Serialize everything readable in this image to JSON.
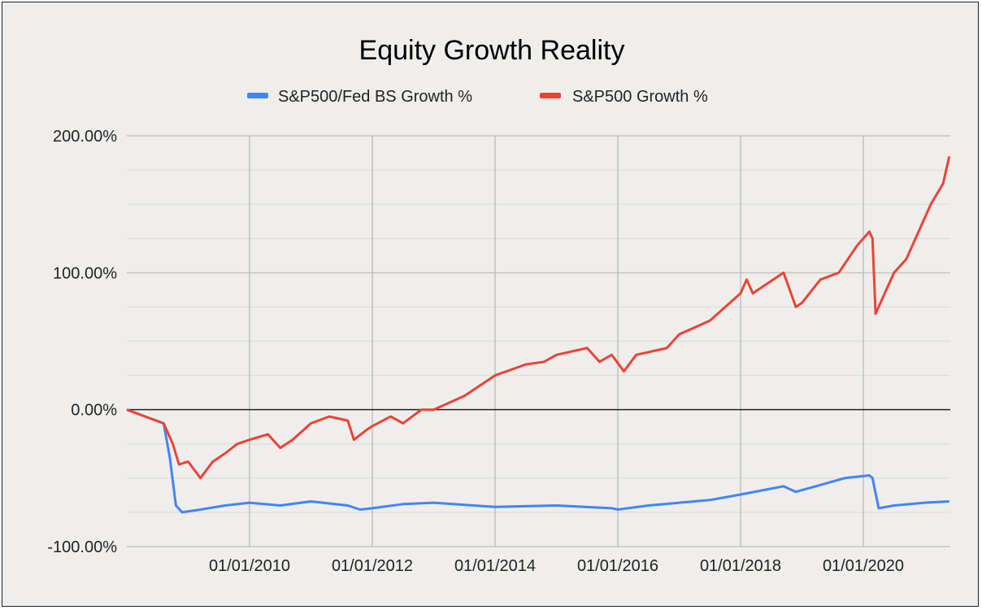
{
  "chart_data": {
    "type": "line",
    "title": "Equity Growth Reality",
    "xlabel": "",
    "ylabel": "",
    "legend_position": "top",
    "xlim": [
      2008.0,
      2021.4
    ],
    "ylim": [
      -100,
      200
    ],
    "y_ticks": [
      -100,
      0,
      100,
      200
    ],
    "y_tick_labels": [
      "-100.00%",
      "0.00%",
      "100.00%",
      "200.00%"
    ],
    "x_ticks": [
      2010,
      2012,
      2014,
      2016,
      2018,
      2020
    ],
    "x_tick_labels": [
      "01/01/2010",
      "01/01/2012",
      "01/01/2014",
      "01/01/2016",
      "01/01/2018",
      "01/01/2020"
    ],
    "grid": true,
    "series": [
      {
        "name": "S&P500/Fed BS Growth %",
        "color": "#4285f4",
        "x": [
          2008.0,
          2008.3,
          2008.6,
          2008.7,
          2008.8,
          2008.9,
          2009.2,
          2009.6,
          2010.0,
          2010.5,
          2011.0,
          2011.6,
          2011.8,
          2012.0,
          2012.5,
          2013.0,
          2014.0,
          2015.0,
          2015.9,
          2016.0,
          2016.5,
          2017.0,
          2017.5,
          2018.0,
          2018.7,
          2018.9,
          2019.3,
          2019.7,
          2020.1,
          2020.15,
          2020.25,
          2020.5,
          2021.0,
          2021.4
        ],
        "y": [
          0,
          -5,
          -10,
          -35,
          -70,
          -75,
          -73,
          -70,
          -68,
          -70,
          -67,
          -70,
          -73,
          -72,
          -69,
          -68,
          -71,
          -70,
          -72,
          -73,
          -70,
          -68,
          -66,
          -62,
          -56,
          -60,
          -55,
          -50,
          -48,
          -50,
          -72,
          -70,
          -68,
          -67
        ]
      },
      {
        "name": "S&P500 Growth %",
        "color": "#ea4335",
        "x": [
          2008.0,
          2008.3,
          2008.6,
          2008.75,
          2008.85,
          2009.0,
          2009.2,
          2009.4,
          2009.6,
          2009.8,
          2010.0,
          2010.3,
          2010.5,
          2010.7,
          2011.0,
          2011.3,
          2011.6,
          2011.7,
          2011.9,
          2012.0,
          2012.3,
          2012.5,
          2012.8,
          2013.0,
          2013.5,
          2014.0,
          2014.5,
          2014.8,
          2015.0,
          2015.5,
          2015.7,
          2015.9,
          2016.1,
          2016.3,
          2016.8,
          2017.0,
          2017.5,
          2018.0,
          2018.1,
          2018.2,
          2018.7,
          2018.9,
          2019.0,
          2019.3,
          2019.6,
          2019.9,
          2020.1,
          2020.15,
          2020.2,
          2020.3,
          2020.5,
          2020.7,
          2020.9,
          2021.1,
          2021.3,
          2021.4
        ],
        "y": [
          0,
          -5,
          -10,
          -25,
          -40,
          -38,
          -50,
          -38,
          -32,
          -25,
          -22,
          -18,
          -28,
          -22,
          -10,
          -5,
          -8,
          -22,
          -15,
          -12,
          -5,
          -10,
          0,
          0,
          10,
          25,
          33,
          35,
          40,
          45,
          35,
          40,
          28,
          40,
          45,
          55,
          65,
          85,
          95,
          85,
          100,
          75,
          78,
          95,
          100,
          120,
          130,
          125,
          70,
          80,
          100,
          110,
          130,
          150,
          165,
          185
        ]
      }
    ]
  }
}
